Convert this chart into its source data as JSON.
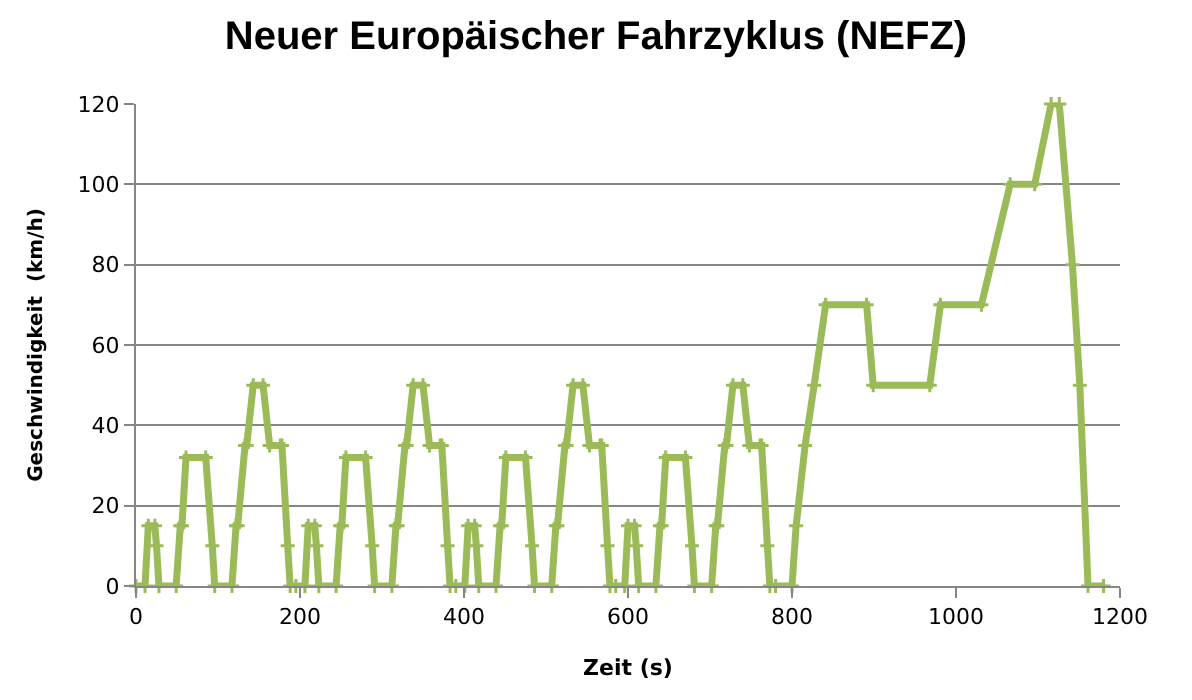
{
  "chart_data": {
    "type": "line",
    "title": "Neuer Europäischer Fahrzyklus (NEFZ)",
    "xlabel": "Zeit (s)",
    "ylabel": "Geschwindigkeit  (km/h)",
    "xlim": [
      0,
      1200
    ],
    "xticks": [
      0,
      200,
      400,
      600,
      800,
      1000,
      1200
    ],
    "ylim": [
      0,
      120
    ],
    "yticks": [
      0,
      20,
      40,
      60,
      80,
      100,
      120
    ],
    "grid": "y",
    "marker": "cross",
    "line_style": "solid",
    "series": [
      {
        "color": "#9bbb59",
        "x": [
          0,
          11,
          15,
          23,
          25,
          28,
          49,
          54,
          56,
          61,
          85,
          93,
          96,
          117,
          122,
          124,
          133,
          135,
          143,
          155,
          163,
          176,
          178,
          185,
          188,
          195,
          206,
          210,
          218,
          220,
          223,
          244,
          249,
          251,
          256,
          280,
          288,
          291,
          312,
          317,
          319,
          328,
          330,
          338,
          350,
          358,
          371,
          373,
          380,
          383,
          390,
          401,
          405,
          413,
          415,
          418,
          439,
          444,
          446,
          451,
          475,
          483,
          486,
          507,
          512,
          514,
          523,
          525,
          533,
          545,
          553,
          566,
          568,
          575,
          578,
          585,
          596,
          600,
          608,
          610,
          613,
          634,
          639,
          641,
          646,
          670,
          678,
          681,
          702,
          707,
          709,
          718,
          720,
          728,
          740,
          748,
          761,
          763,
          770,
          773,
          780,
          800,
          805,
          816,
          827,
          841,
          891,
          899,
          968,
          981,
          1031,
          1066,
          1096,
          1116,
          1126,
          1142,
          1151,
          1161,
          1180
        ],
        "values": [
          0,
          0,
          15,
          15,
          10,
          0,
          0,
          15,
          15,
          32,
          32,
          10,
          0,
          0,
          15,
          15,
          35,
          35,
          50,
          50,
          35,
          35,
          35,
          10,
          0,
          0,
          0,
          15,
          15,
          10,
          0,
          0,
          15,
          15,
          32,
          32,
          10,
          0,
          0,
          15,
          15,
          35,
          35,
          50,
          50,
          35,
          35,
          35,
          10,
          0,
          0,
          0,
          15,
          15,
          10,
          0,
          0,
          15,
          15,
          32,
          32,
          10,
          0,
          0,
          15,
          15,
          35,
          35,
          50,
          50,
          35,
          35,
          35,
          10,
          0,
          0,
          0,
          15,
          15,
          10,
          0,
          0,
          15,
          15,
          32,
          32,
          10,
          0,
          0,
          15,
          15,
          35,
          35,
          50,
          50,
          35,
          35,
          35,
          10,
          0,
          0,
          0,
          15,
          35,
          50,
          70,
          70,
          50,
          50,
          70,
          70,
          100,
          100,
          120,
          120,
          80,
          50,
          0,
          0
        ]
      }
    ]
  }
}
